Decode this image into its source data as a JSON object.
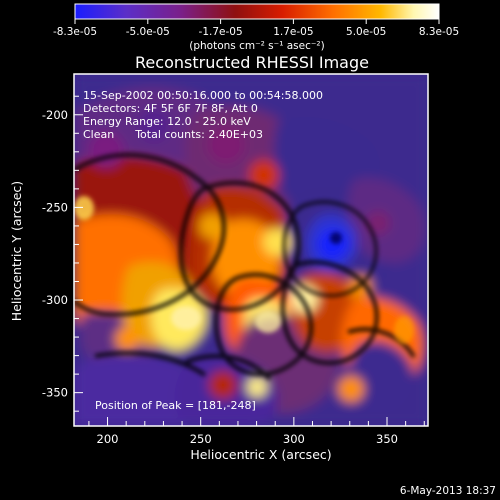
{
  "colorbar": {
    "tick_labels": [
      "-8.3e-05",
      "-5.0e-05",
      "-1.7e-05",
      "1.7e-05",
      "5.0e-05",
      "8.3e-05"
    ],
    "units_label": "(photons cm⁻² s⁻¹ asec⁻²)",
    "colors": [
      "#1a1dff",
      "#5b2ec8",
      "#7a208a",
      "#8f1010",
      "#d81d00",
      "#ff6f00",
      "#ffb800",
      "#fff7b0",
      "#ffffff"
    ]
  },
  "chart_data": {
    "type": "heatmap",
    "title": "Reconstructed RHESSI Image",
    "xlabel": "Heliocentric X (arcsec)",
    "ylabel": "Heliocentric Y (arcsec)",
    "x_ticks": [
      "200",
      "250",
      "300",
      "350"
    ],
    "y_ticks": [
      "-200",
      "-250",
      "-300",
      "-350"
    ],
    "x_tick_values": [
      200,
      250,
      300,
      350
    ],
    "y_tick_values": [
      -200,
      -250,
      -300,
      -350
    ],
    "xlim": [
      182,
      372
    ],
    "ylim": [
      -368,
      -178
    ],
    "value_range": [
      -8.3e-05,
      8.3e-05
    ],
    "annotations": [
      "15-Sep-2002 00:50:16.000 to 00:54:58.000",
      "Detectors: 4F 5F 6F 7F 8F, Att 0",
      "Energy Range: 12.0 - 25.0 keV",
      "Clean      Total counts: 2.40E+03"
    ],
    "peak_label": "Position of Peak = [181,-248]",
    "features": [
      {
        "name": "low-flux-minimum",
        "x": 335,
        "y": -265,
        "level": "minimum"
      },
      {
        "name": "bright-lower-left",
        "x": 220,
        "y": -310,
        "level": "high"
      },
      {
        "name": "bright-center",
        "x": 280,
        "y": -290,
        "level": "high"
      },
      {
        "name": "upper-right-low",
        "x": 330,
        "y": -225,
        "level": "low"
      },
      {
        "name": "lower-right-mixed",
        "x": 345,
        "y": -340,
        "level": "mixed"
      }
    ]
  },
  "footer": {
    "timestamp": "6-May-2013 18:37"
  }
}
